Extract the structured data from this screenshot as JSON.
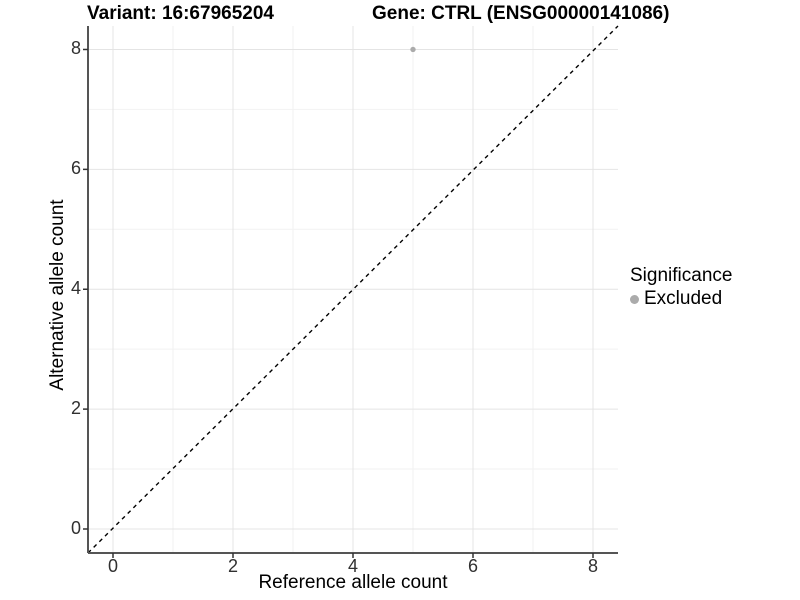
{
  "title": {
    "variant": "Variant: 16:67965204",
    "gene": "Gene: CTRL (ENSG00000141086)"
  },
  "legend": {
    "title": "Significance",
    "items": [
      {
        "label": "Excluded",
        "color": "#ababab"
      }
    ]
  },
  "colors": {
    "background": "#ffffff",
    "axis_line": "#555555",
    "tick_mark": "#333333",
    "tick_label": "#303030",
    "grid_major": "#e4e4e4",
    "grid_minor": "#f2f2f2",
    "point": "#ababab",
    "reference_line": "#000000"
  },
  "chart_data": {
    "type": "scatter",
    "title": "Variant: 16:67965204   Gene: CTRL (ENSG00000141086)",
    "xlabel": "Reference allele count",
    "ylabel": "Alternative allele count",
    "xlim": [
      -0.42,
      8.42
    ],
    "ylim": [
      -0.4,
      8.4
    ],
    "x_ticks": [
      0,
      2,
      4,
      6,
      8
    ],
    "y_ticks": [
      0,
      2,
      4,
      6,
      8
    ],
    "x_minor_ticks": [
      1,
      3,
      5,
      7
    ],
    "y_minor_ticks": [
      1,
      3,
      5,
      7
    ],
    "grid": true,
    "legend_position": "right",
    "series": [
      {
        "name": "Excluded",
        "color": "#ababab",
        "points": [
          {
            "x": 5,
            "y": 8
          }
        ]
      }
    ],
    "reference_line": {
      "type": "identity y=x",
      "style": "dashed",
      "color": "#000000"
    }
  }
}
